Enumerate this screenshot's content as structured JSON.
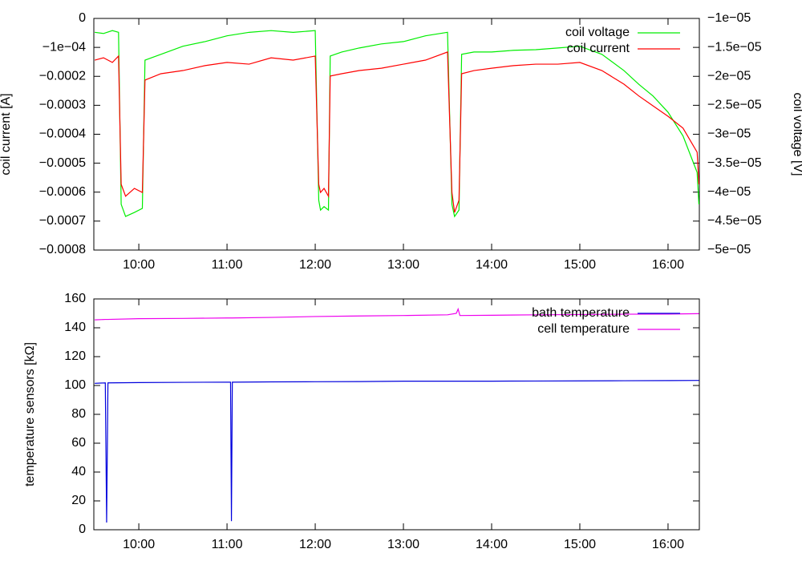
{
  "chart_data": [
    {
      "type": "line",
      "y_label": "coil current [A]",
      "y2_label": "coil voltage [V]",
      "legend": "top right",
      "grid": false,
      "xlim": [
        9.49,
        16.355
      ],
      "xticks": [
        {
          "value": 10,
          "label": "10:00"
        },
        {
          "value": 11,
          "label": "11:00"
        },
        {
          "value": 12,
          "label": "12:00"
        },
        {
          "value": 13,
          "label": "13:00"
        },
        {
          "value": 14,
          "label": "14:00"
        },
        {
          "value": 15,
          "label": "15:00"
        },
        {
          "value": 16,
          "label": "16:00"
        }
      ],
      "ylim": [
        -0.0008,
        0
      ],
      "yticks": [
        0,
        {
          "value": -0.0001,
          "label": "−1e−04"
        },
        {
          "value": -0.0002,
          "label": "−0.0002"
        },
        {
          "value": -0.0003,
          "label": "−0.0003"
        },
        {
          "value": -0.0004,
          "label": "−0.0004"
        },
        {
          "value": -0.0005,
          "label": "−0.0005"
        },
        {
          "value": -0.0006,
          "label": "−0.0006"
        },
        {
          "value": -0.0007,
          "label": "−0.0007"
        },
        {
          "value": -0.0008,
          "label": "−0.0008"
        }
      ],
      "y2lim": [
        -5e-05,
        -1e-05
      ],
      "y2ticks": [
        {
          "value": -1e-05,
          "label": "−1e−05"
        },
        {
          "value": -1.5e-05,
          "label": "−1.5e−05"
        },
        {
          "value": -2e-05,
          "label": "−2e−05"
        },
        {
          "value": -2.5e-05,
          "label": "−2.5e−05"
        },
        {
          "value": -3e-05,
          "label": "−3e−05"
        },
        {
          "value": -3.5e-05,
          "label": "−3.5e−05"
        },
        {
          "value": -4e-05,
          "label": "−4e−05"
        },
        {
          "value": -4.5e-05,
          "label": "−4.5e−05"
        },
        {
          "value": -5e-05,
          "label": "−5e−05"
        }
      ],
      "x": [
        9.5,
        9.6,
        9.7,
        9.77,
        9.8,
        9.85,
        9.95,
        10.04,
        10.07,
        10.25,
        10.5,
        10.75,
        11.0,
        11.25,
        11.5,
        11.75,
        12.0,
        12.04,
        12.06,
        12.1,
        12.15,
        12.17,
        12.3,
        12.5,
        12.75,
        13.0,
        13.25,
        13.5,
        13.55,
        13.58,
        13.63,
        13.66,
        13.8,
        14.0,
        14.25,
        14.5,
        14.75,
        15.0,
        15.25,
        15.5,
        15.67,
        15.83,
        16.0,
        16.17,
        16.33,
        16.35
      ],
      "series": [
        {
          "name": "coil voltage",
          "color": "#00ee00",
          "axis": "y2",
          "values": [
            -1.24e-05,
            -1.26e-05,
            -1.21e-05,
            -1.24e-05,
            -4.21e-05,
            -4.42e-05,
            -4.35e-05,
            -4.28e-05,
            -1.72e-05,
            -1.62e-05,
            -1.48e-05,
            -1.4e-05,
            -1.3e-05,
            -1.24e-05,
            -1.21e-05,
            -1.24e-05,
            -1.21e-05,
            -4.14e-05,
            -4.31e-05,
            -4.25e-05,
            -4.31e-05,
            -1.65e-05,
            -1.58e-05,
            -1.51e-05,
            -1.44e-05,
            -1.4e-05,
            -1.3e-05,
            -1.24e-05,
            -4.21e-05,
            -4.42e-05,
            -4.31e-05,
            -1.62e-05,
            -1.58e-05,
            -1.58e-05,
            -1.55e-05,
            -1.54e-05,
            -1.51e-05,
            -1.48e-05,
            -1.62e-05,
            -1.9e-05,
            -2.14e-05,
            -2.34e-05,
            -2.62e-05,
            -3.03e-05,
            -3.66e-05,
            -4.21e-05
          ]
        },
        {
          "name": "coil current",
          "color": "#ff0000",
          "values": [
            -0.000144,
            -0.000136,
            -0.000152,
            -0.00013,
            -0.000573,
            -0.000614,
            -0.000587,
            -0.000601,
            -0.000213,
            -0.000191,
            -0.00018,
            -0.000163,
            -0.000152,
            -0.000158,
            -0.000136,
            -0.000144,
            -0.00013,
            -0.000573,
            -0.000601,
            -0.000587,
            -0.000614,
            -0.000199,
            -0.000191,
            -0.00018,
            -0.000172,
            -0.000158,
            -0.000144,
            -0.000116,
            -0.000601,
            -0.00067,
            -0.000628,
            -0.000191,
            -0.00018,
            -0.000172,
            -0.000163,
            -0.000158,
            -0.000158,
            -0.000152,
            -0.00018,
            -0.000227,
            -0.000268,
            -0.000302,
            -0.000338,
            -0.000379,
            -0.000462,
            -0.000573
          ]
        }
      ]
    },
    {
      "type": "line",
      "y_label": "temperature sensors [kΩ]",
      "legend": "top right",
      "grid": false,
      "xlim": [
        9.49,
        16.355
      ],
      "xticks": [
        {
          "value": 10,
          "label": "10:00"
        },
        {
          "value": 11,
          "label": "11:00"
        },
        {
          "value": 12,
          "label": "12:00"
        },
        {
          "value": 13,
          "label": "13:00"
        },
        {
          "value": 14,
          "label": "14:00"
        },
        {
          "value": 15,
          "label": "15:00"
        },
        {
          "value": 16,
          "label": "16:00"
        }
      ],
      "ylim": [
        0,
        160
      ],
      "yticks": [
        0,
        20,
        40,
        60,
        80,
        100,
        120,
        140,
        160
      ],
      "x": [
        9.5,
        9.62,
        9.635,
        9.65,
        10.0,
        10.5,
        11.0,
        11.04,
        11.05,
        11.06,
        11.5,
        12.0,
        12.5,
        13.0,
        13.5,
        13.6,
        13.62,
        13.64,
        14.0,
        14.5,
        15.0,
        15.5,
        16.0,
        16.35
      ],
      "series": [
        {
          "name": "bath temperature",
          "color": "#0000dd",
          "values": [
            101.5,
            101.8,
            5,
            101.8,
            102,
            102.2,
            102.3,
            102.3,
            6,
            102.3,
            102.5,
            102.6,
            102.7,
            103,
            103,
            103,
            103,
            103,
            103,
            103.1,
            103.2,
            103.3,
            103.4,
            103.5
          ]
        },
        {
          "name": "cell temperature",
          "color": "#ee00ee",
          "values": [
            145.5,
            145.8,
            145.8,
            145.8,
            146.3,
            146.5,
            146.8,
            146.8,
            146.8,
            146.8,
            147.2,
            147.8,
            148.2,
            148.5,
            149,
            150,
            153,
            148.5,
            148.7,
            149,
            149.2,
            149.4,
            149.5,
            149.8
          ]
        }
      ]
    }
  ]
}
